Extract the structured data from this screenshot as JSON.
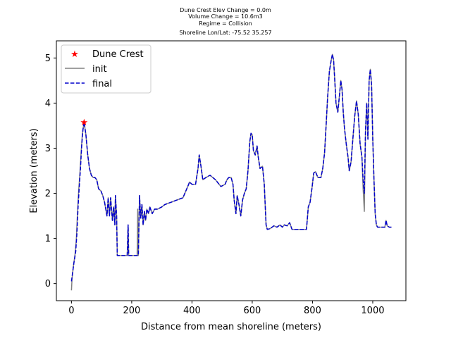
{
  "title_lines": [
    "Dune Crest Elev Change = 0.0m",
    "Volume Change = 10.6m3",
    "Regime = Collision",
    "Shoreline Lon/Lat: -75.52 35.257"
  ],
  "chart_data": {
    "type": "line",
    "xlabel": "Distance from mean shoreline (meters)",
    "ylabel": "Elevation (meters)",
    "xlim": [
      -50,
      1110
    ],
    "ylim": [
      -0.38,
      5.38
    ],
    "xticks": [
      0,
      200,
      400,
      600,
      800,
      1000
    ],
    "yticks": [
      0,
      1,
      2,
      3,
      4,
      5
    ],
    "grid": false,
    "legend_position": "top-left",
    "legend": [
      "Dune Crest",
      "init",
      "final"
    ],
    "colors": {
      "dune_crest": "#ff0000",
      "init": "#808080",
      "final": "#0000cc"
    },
    "dune_crest": {
      "name": "Dune Crest",
      "x": 42,
      "y": 3.58
    },
    "series": [
      {
        "name": "init",
        "style": "solid",
        "points": [
          [
            0,
            -0.15
          ],
          [
            2,
            0.1
          ],
          [
            6,
            0.35
          ],
          [
            12,
            0.65
          ],
          [
            16,
            0.95
          ],
          [
            20,
            1.55
          ],
          [
            24,
            2.05
          ],
          [
            28,
            2.45
          ],
          [
            32,
            2.9
          ],
          [
            36,
            3.3
          ],
          [
            42,
            3.58
          ],
          [
            48,
            3.3
          ],
          [
            54,
            2.85
          ],
          [
            60,
            2.55
          ],
          [
            66,
            2.4
          ],
          [
            72,
            2.35
          ],
          [
            78,
            2.35
          ],
          [
            84,
            2.3
          ],
          [
            90,
            2.1
          ],
          [
            98,
            2.05
          ],
          [
            104,
            1.95
          ],
          [
            110,
            1.8
          ],
          [
            114,
            1.65
          ],
          [
            118,
            1.5
          ],
          [
            122,
            1.9
          ],
          [
            126,
            1.5
          ],
          [
            130,
            1.9
          ],
          [
            136,
            1.4
          ],
          [
            140,
            1.7
          ],
          [
            144,
            1.3
          ],
          [
            146,
            1.95
          ],
          [
            150,
            1.5
          ],
          [
            152,
            0.62
          ],
          [
            185,
            0.62
          ],
          [
            188,
            1.3
          ],
          [
            190,
            0.62
          ],
          [
            218,
            0.62
          ],
          [
            220,
            1.65
          ],
          [
            222,
            0.62
          ],
          [
            226,
            1.95
          ],
          [
            230,
            1.45
          ],
          [
            234,
            1.75
          ],
          [
            238,
            1.3
          ],
          [
            242,
            1.6
          ],
          [
            246,
            1.4
          ],
          [
            250,
            1.65
          ],
          [
            256,
            1.55
          ],
          [
            260,
            1.7
          ],
          [
            268,
            1.55
          ],
          [
            276,
            1.65
          ],
          [
            286,
            1.65
          ],
          [
            300,
            1.7
          ],
          [
            310,
            1.75
          ],
          [
            330,
            1.8
          ],
          [
            350,
            1.85
          ],
          [
            370,
            1.9
          ],
          [
            386,
            2.15
          ],
          [
            392,
            2.25
          ],
          [
            400,
            2.2
          ],
          [
            412,
            2.2
          ],
          [
            420,
            2.55
          ],
          [
            424,
            2.85
          ],
          [
            430,
            2.6
          ],
          [
            436,
            2.3
          ],
          [
            446,
            2.35
          ],
          [
            460,
            2.4
          ],
          [
            478,
            2.3
          ],
          [
            496,
            2.15
          ],
          [
            510,
            2.2
          ],
          [
            516,
            2.3
          ],
          [
            522,
            2.35
          ],
          [
            530,
            2.35
          ],
          [
            536,
            2.2
          ],
          [
            540,
            1.85
          ],
          [
            546,
            1.55
          ],
          [
            550,
            1.95
          ],
          [
            556,
            1.75
          ],
          [
            562,
            1.5
          ],
          [
            568,
            1.85
          ],
          [
            574,
            2.0
          ],
          [
            580,
            2.1
          ],
          [
            586,
            2.5
          ],
          [
            592,
            3.15
          ],
          [
            596,
            3.33
          ],
          [
            600,
            3.3
          ],
          [
            604,
            2.95
          ],
          [
            610,
            2.85
          ],
          [
            616,
            3.05
          ],
          [
            620,
            2.8
          ],
          [
            626,
            2.55
          ],
          [
            634,
            2.6
          ],
          [
            640,
            2.2
          ],
          [
            646,
            1.3
          ],
          [
            650,
            1.2
          ],
          [
            660,
            1.22
          ],
          [
            672,
            1.28
          ],
          [
            682,
            1.25
          ],
          [
            692,
            1.3
          ],
          [
            700,
            1.25
          ],
          [
            706,
            1.3
          ],
          [
            716,
            1.28
          ],
          [
            724,
            1.35
          ],
          [
            732,
            1.2
          ],
          [
            760,
            1.2
          ],
          [
            780,
            1.2
          ],
          [
            786,
            1.7
          ],
          [
            792,
            1.8
          ],
          [
            798,
            2.1
          ],
          [
            804,
            2.45
          ],
          [
            810,
            2.48
          ],
          [
            818,
            2.35
          ],
          [
            828,
            2.35
          ],
          [
            834,
            2.55
          ],
          [
            840,
            2.9
          ],
          [
            846,
            3.6
          ],
          [
            850,
            4.1
          ],
          [
            856,
            4.7
          ],
          [
            862,
            4.95
          ],
          [
            866,
            5.08
          ],
          [
            870,
            4.95
          ],
          [
            874,
            4.5
          ],
          [
            878,
            4.0
          ],
          [
            884,
            3.8
          ],
          [
            890,
            4.2
          ],
          [
            894,
            4.5
          ],
          [
            898,
            4.3
          ],
          [
            902,
            3.8
          ],
          [
            906,
            3.45
          ],
          [
            912,
            3.1
          ],
          [
            918,
            2.8
          ],
          [
            922,
            2.5
          ],
          [
            928,
            2.7
          ],
          [
            934,
            3.2
          ],
          [
            940,
            3.7
          ],
          [
            946,
            4.05
          ],
          [
            952,
            3.75
          ],
          [
            958,
            3.1
          ],
          [
            964,
            2.8
          ],
          [
            968,
            2.1
          ],
          [
            972,
            1.6
          ],
          [
            976,
            3.4
          ],
          [
            980,
            4.0
          ],
          [
            984,
            3.2
          ],
          [
            988,
            4.5
          ],
          [
            992,
            4.75
          ],
          [
            996,
            4.4
          ],
          [
            1000,
            3.2
          ],
          [
            1004,
            2.3
          ],
          [
            1008,
            1.55
          ],
          [
            1012,
            1.3
          ],
          [
            1016,
            1.25
          ],
          [
            1022,
            1.25
          ],
          [
            1030,
            1.25
          ],
          [
            1040,
            1.25
          ],
          [
            1044,
            1.4
          ],
          [
            1048,
            1.28
          ],
          [
            1055,
            1.25
          ],
          [
            1062,
            1.25
          ]
        ]
      },
      {
        "name": "final",
        "style": "dashed",
        "points": [
          [
            0,
            0.05
          ],
          [
            4,
            0.25
          ],
          [
            8,
            0.45
          ],
          [
            14,
            0.7
          ],
          [
            18,
            1.1
          ],
          [
            22,
            1.7
          ],
          [
            26,
            2.15
          ],
          [
            30,
            2.55
          ],
          [
            34,
            3.05
          ],
          [
            38,
            3.4
          ],
          [
            42,
            3.58
          ],
          [
            48,
            3.3
          ],
          [
            54,
            2.85
          ],
          [
            60,
            2.55
          ],
          [
            66,
            2.4
          ],
          [
            72,
            2.35
          ],
          [
            78,
            2.35
          ],
          [
            84,
            2.3
          ],
          [
            90,
            2.1
          ],
          [
            98,
            2.05
          ],
          [
            104,
            1.95
          ],
          [
            110,
            1.8
          ],
          [
            114,
            1.65
          ],
          [
            118,
            1.5
          ],
          [
            122,
            1.9
          ],
          [
            126,
            1.5
          ],
          [
            130,
            1.9
          ],
          [
            136,
            1.4
          ],
          [
            140,
            1.7
          ],
          [
            144,
            1.3
          ],
          [
            146,
            1.95
          ],
          [
            150,
            1.5
          ],
          [
            152,
            0.62
          ],
          [
            185,
            0.62
          ],
          [
            188,
            1.3
          ],
          [
            190,
            0.62
          ],
          [
            222,
            0.62
          ],
          [
            226,
            1.95
          ],
          [
            230,
            1.45
          ],
          [
            234,
            1.75
          ],
          [
            238,
            1.3
          ],
          [
            242,
            1.6
          ],
          [
            246,
            1.4
          ],
          [
            250,
            1.65
          ],
          [
            256,
            1.55
          ],
          [
            260,
            1.7
          ],
          [
            268,
            1.55
          ],
          [
            276,
            1.65
          ],
          [
            286,
            1.65
          ],
          [
            300,
            1.7
          ],
          [
            310,
            1.75
          ],
          [
            330,
            1.8
          ],
          [
            350,
            1.85
          ],
          [
            370,
            1.9
          ],
          [
            386,
            2.15
          ],
          [
            392,
            2.25
          ],
          [
            400,
            2.2
          ],
          [
            412,
            2.2
          ],
          [
            420,
            2.55
          ],
          [
            424,
            2.85
          ],
          [
            430,
            2.6
          ],
          [
            436,
            2.3
          ],
          [
            446,
            2.35
          ],
          [
            460,
            2.4
          ],
          [
            478,
            2.3
          ],
          [
            496,
            2.15
          ],
          [
            510,
            2.2
          ],
          [
            516,
            2.3
          ],
          [
            522,
            2.35
          ],
          [
            530,
            2.35
          ],
          [
            536,
            2.2
          ],
          [
            540,
            1.85
          ],
          [
            546,
            1.55
          ],
          [
            550,
            1.95
          ],
          [
            556,
            1.75
          ],
          [
            562,
            1.5
          ],
          [
            568,
            1.85
          ],
          [
            574,
            2.0
          ],
          [
            580,
            2.1
          ],
          [
            586,
            2.5
          ],
          [
            592,
            3.15
          ],
          [
            596,
            3.33
          ],
          [
            600,
            3.3
          ],
          [
            604,
            2.95
          ],
          [
            610,
            2.85
          ],
          [
            616,
            3.05
          ],
          [
            620,
            2.8
          ],
          [
            626,
            2.55
          ],
          [
            634,
            2.6
          ],
          [
            640,
            2.2
          ],
          [
            646,
            1.3
          ],
          [
            650,
            1.2
          ],
          [
            660,
            1.22
          ],
          [
            672,
            1.28
          ],
          [
            682,
            1.25
          ],
          [
            692,
            1.3
          ],
          [
            700,
            1.25
          ],
          [
            706,
            1.3
          ],
          [
            716,
            1.28
          ],
          [
            724,
            1.35
          ],
          [
            732,
            1.2
          ],
          [
            760,
            1.2
          ],
          [
            780,
            1.2
          ],
          [
            786,
            1.7
          ],
          [
            792,
            1.8
          ],
          [
            798,
            2.1
          ],
          [
            804,
            2.45
          ],
          [
            810,
            2.48
          ],
          [
            818,
            2.35
          ],
          [
            828,
            2.35
          ],
          [
            834,
            2.55
          ],
          [
            840,
            2.9
          ],
          [
            846,
            3.6
          ],
          [
            850,
            4.1
          ],
          [
            856,
            4.7
          ],
          [
            862,
            4.95
          ],
          [
            866,
            5.08
          ],
          [
            870,
            4.95
          ],
          [
            874,
            4.5
          ],
          [
            878,
            4.0
          ],
          [
            884,
            3.8
          ],
          [
            890,
            4.2
          ],
          [
            894,
            4.5
          ],
          [
            898,
            4.3
          ],
          [
            902,
            3.8
          ],
          [
            906,
            3.45
          ],
          [
            912,
            3.1
          ],
          [
            918,
            2.8
          ],
          [
            922,
            2.5
          ],
          [
            928,
            2.7
          ],
          [
            934,
            3.2
          ],
          [
            940,
            3.7
          ],
          [
            946,
            4.05
          ],
          [
            952,
            3.75
          ],
          [
            958,
            3.1
          ],
          [
            964,
            2.8
          ],
          [
            968,
            2.3
          ],
          [
            972,
            2.0
          ],
          [
            976,
            3.4
          ],
          [
            980,
            4.0
          ],
          [
            984,
            3.2
          ],
          [
            988,
            4.5
          ],
          [
            992,
            4.75
          ],
          [
            996,
            4.4
          ],
          [
            1000,
            3.2
          ],
          [
            1004,
            2.3
          ],
          [
            1008,
            1.55
          ],
          [
            1012,
            1.3
          ],
          [
            1016,
            1.25
          ],
          [
            1022,
            1.25
          ],
          [
            1030,
            1.25
          ],
          [
            1040,
            1.25
          ],
          [
            1044,
            1.4
          ],
          [
            1048,
            1.28
          ],
          [
            1055,
            1.25
          ],
          [
            1062,
            1.25
          ]
        ]
      }
    ]
  }
}
